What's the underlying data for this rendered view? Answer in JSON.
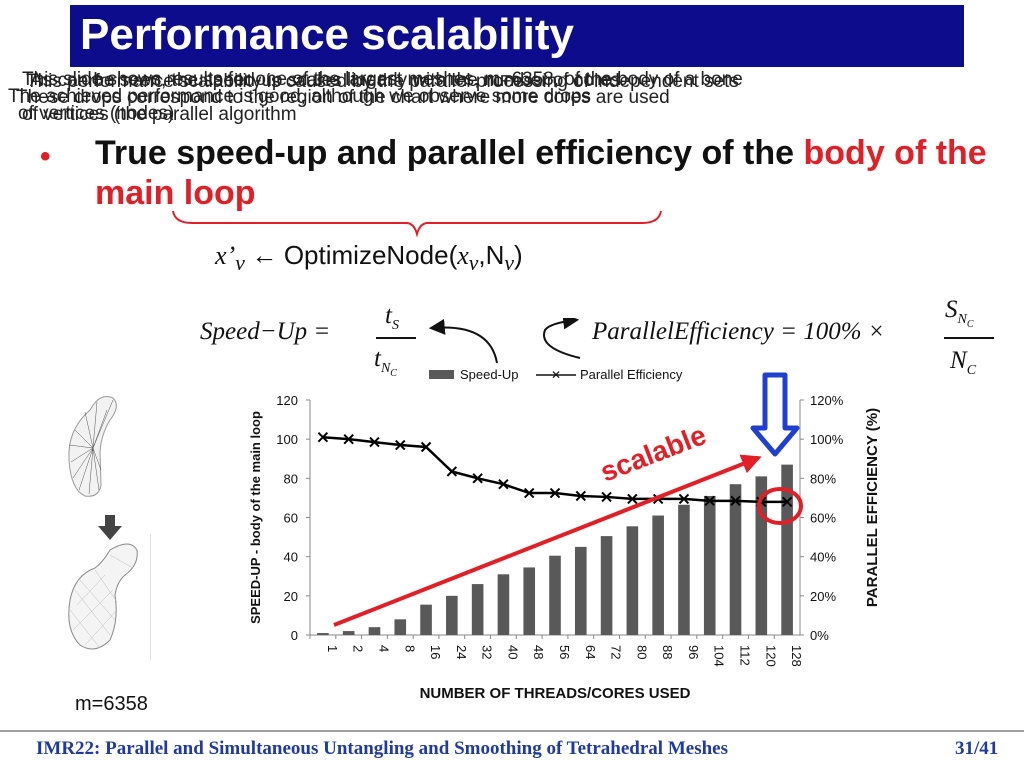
{
  "slide": {
    "title": "Performance scalability",
    "overlapping_notes": [
      "This slide shows results for one of the largest meshes, m=6358, of the body of a bone",
      "As can be seen, the speed-up scales linearly with the number of cores",
      "The achieved performance is good, although we observe some drops",
      "These drops correspond to the region of the chart where more cores are used",
      "This performance scalability is caused by the parallel processing of independent sets",
      "of vertices (the parallel algorithm",
      "of vertices (nodes)"
    ],
    "bullet_prefix": "True speed-up and parallel efficiency of the ",
    "bullet_highlight": "body of the main loop",
    "formula_call": {
      "lhs_var": "x’",
      "lhs_sub": "v",
      "arrow": "←",
      "fn": "OptimizeNode(",
      "arg1": "x",
      "arg1_sub": "v",
      "comma": ",N",
      "arg2_sub": "v",
      "close": ")"
    },
    "speedup_formula": {
      "lhs": "Speed−Up =",
      "num": "t",
      "num_sub": "S",
      "den": "t",
      "den_sub": "N",
      "den_subsub": "C"
    },
    "efficiency_formula": {
      "lhs": "ParallelEfficiency = 100% ×",
      "num": "S",
      "num_sub": "N",
      "num_subsub": "C",
      "den": "N",
      "den_sub": "C"
    },
    "mesh_caption": "m=6358",
    "footer": "IMR22: Parallel and Simultaneous Untangling and Smoothing of Tetrahedral Meshes",
    "page": "31/41",
    "annotation": "scalable"
  },
  "chart_data": {
    "type": "bar",
    "xlabel": "NUMBER OF THREADS/CORES USED",
    "ylabel": "SPEED-UP - body of the main loop",
    "y2label": "PARALLEL EFFICIENCY (%)",
    "categories": [
      "1",
      "2",
      "4",
      "8",
      "16",
      "24",
      "32",
      "40",
      "48",
      "56",
      "64",
      "72",
      "80",
      "88",
      "96",
      "104",
      "112",
      "120",
      "128"
    ],
    "series": [
      {
        "name": "Speed-Up",
        "type": "bar",
        "axis": "left",
        "color": "#595959",
        "values": [
          1,
          2,
          4,
          8,
          15.5,
          20,
          26,
          31,
          34.5,
          40.5,
          45,
          50.5,
          55.5,
          61,
          66.5,
          71,
          77,
          81,
          87
        ]
      },
      {
        "name": "Parallel Efficiency",
        "type": "line",
        "axis": "right",
        "color": "#000000",
        "marker": "x",
        "values": [
          101,
          100,
          98.5,
          97,
          96,
          83.5,
          80,
          77,
          72.5,
          72.5,
          71,
          70.5,
          69.5,
          69.5,
          69.5,
          68.5,
          68.5,
          68,
          68
        ]
      }
    ],
    "ylim": [
      0,
      120
    ],
    "yticks": [
      "0",
      "20",
      "40",
      "60",
      "80",
      "100",
      "120"
    ],
    "y2lim": [
      0,
      120
    ],
    "y2ticks": [
      "0%",
      "20%",
      "40%",
      "60%",
      "80%",
      "100%",
      "120%"
    ],
    "legend": "top",
    "grid": false,
    "highlight_color": "#e01f26",
    "arrow_color": "#1f3fd1"
  }
}
